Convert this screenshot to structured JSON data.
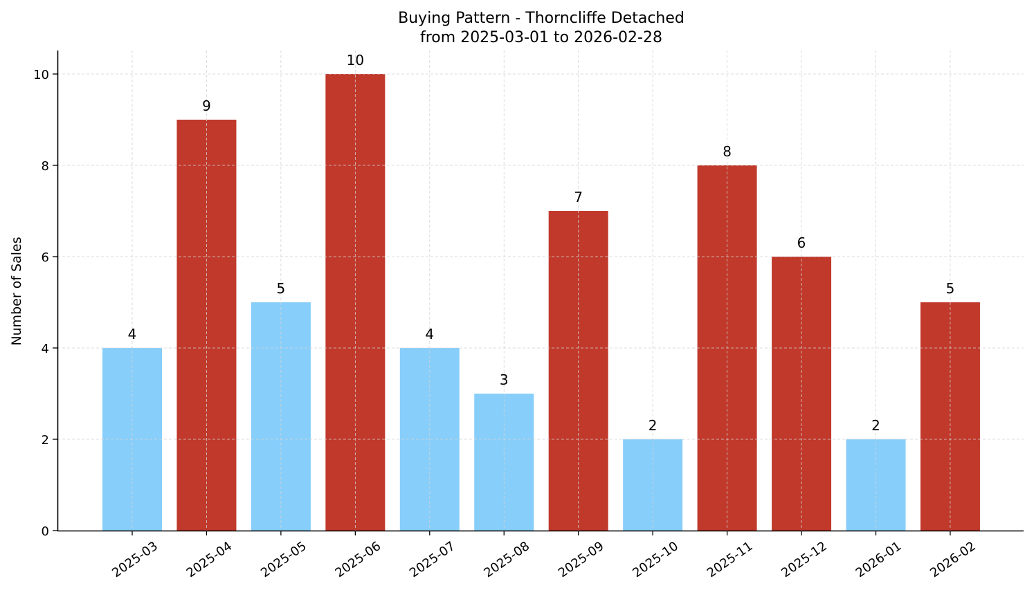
{
  "chart_data": {
    "type": "bar",
    "title": "Buying Pattern - Thorncliffe Detached",
    "subtitle": "from 2025-03-01 to 2026-02-28",
    "xlabel": "",
    "ylabel": "Number of Sales",
    "categories": [
      "2025-03",
      "2025-04",
      "2025-05",
      "2025-06",
      "2025-07",
      "2025-08",
      "2025-09",
      "2025-10",
      "2025-11",
      "2025-12",
      "2026-01",
      "2026-02"
    ],
    "values": [
      4,
      9,
      5,
      10,
      4,
      3,
      7,
      2,
      8,
      6,
      2,
      5
    ],
    "bar_colors": [
      "#87CEFA",
      "#C0392B",
      "#87CEFA",
      "#C0392B",
      "#87CEFA",
      "#87CEFA",
      "#C0392B",
      "#87CEFA",
      "#C0392B",
      "#C0392B",
      "#87CEFA",
      "#C0392B"
    ],
    "ylim": [
      0,
      10.5
    ],
    "yticks": [
      0,
      2,
      4,
      6,
      8,
      10
    ],
    "grid": true,
    "legend": null,
    "data_labels": true
  },
  "colors": {
    "high": "#C0392B",
    "low": "#87CEFA",
    "grid": "#d3d3d3",
    "axis": "#000000"
  }
}
